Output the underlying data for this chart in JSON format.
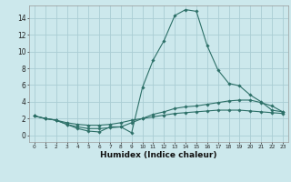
{
  "xlabel": "Humidex (Indice chaleur)",
  "background_color": "#cce8ec",
  "grid_color": "#aacdd4",
  "line_color": "#2d7068",
  "x_ticks": [
    0,
    1,
    2,
    3,
    4,
    5,
    6,
    7,
    8,
    9,
    10,
    11,
    12,
    13,
    14,
    15,
    16,
    17,
    18,
    19,
    20,
    21,
    22,
    23
  ],
  "y_ticks": [
    0,
    2,
    4,
    6,
    8,
    10,
    12,
    14
  ],
  "ylim": [
    -0.8,
    15.5
  ],
  "xlim": [
    -0.5,
    23.5
  ],
  "series": [
    {
      "x": [
        0,
        1,
        2,
        3,
        4,
        5,
        6,
        7,
        8,
        9,
        10,
        11,
        12,
        13,
        14,
        15,
        16,
        17,
        18,
        19,
        20,
        21,
        22,
        23
      ],
      "y": [
        2.3,
        2.0,
        1.8,
        1.3,
        0.8,
        0.5,
        0.4,
        1.0,
        1.0,
        0.3,
        5.7,
        9.0,
        11.3,
        14.3,
        15.0,
        14.8,
        10.7,
        7.8,
        6.2,
        5.9,
        4.8,
        4.0,
        3.0,
        2.8
      ]
    },
    {
      "x": [
        0,
        1,
        2,
        3,
        4,
        5,
        6,
        7,
        8,
        9,
        10,
        11,
        12,
        13,
        14,
        15,
        16,
        17,
        18,
        19,
        20,
        21,
        22,
        23
      ],
      "y": [
        2.3,
        2.0,
        1.8,
        1.3,
        1.0,
        0.8,
        0.8,
        0.9,
        1.0,
        1.5,
        2.0,
        2.5,
        2.8,
        3.2,
        3.4,
        3.5,
        3.7,
        3.9,
        4.1,
        4.2,
        4.2,
        3.9,
        3.5,
        2.8
      ]
    },
    {
      "x": [
        0,
        1,
        2,
        3,
        4,
        5,
        6,
        7,
        8,
        9,
        10,
        11,
        12,
        13,
        14,
        15,
        16,
        17,
        18,
        19,
        20,
        21,
        22,
        23
      ],
      "y": [
        2.3,
        2.0,
        1.8,
        1.5,
        1.3,
        1.2,
        1.2,
        1.3,
        1.5,
        1.8,
        2.0,
        2.2,
        2.4,
        2.6,
        2.7,
        2.8,
        2.9,
        3.0,
        3.0,
        3.0,
        2.9,
        2.8,
        2.7,
        2.6
      ]
    }
  ]
}
